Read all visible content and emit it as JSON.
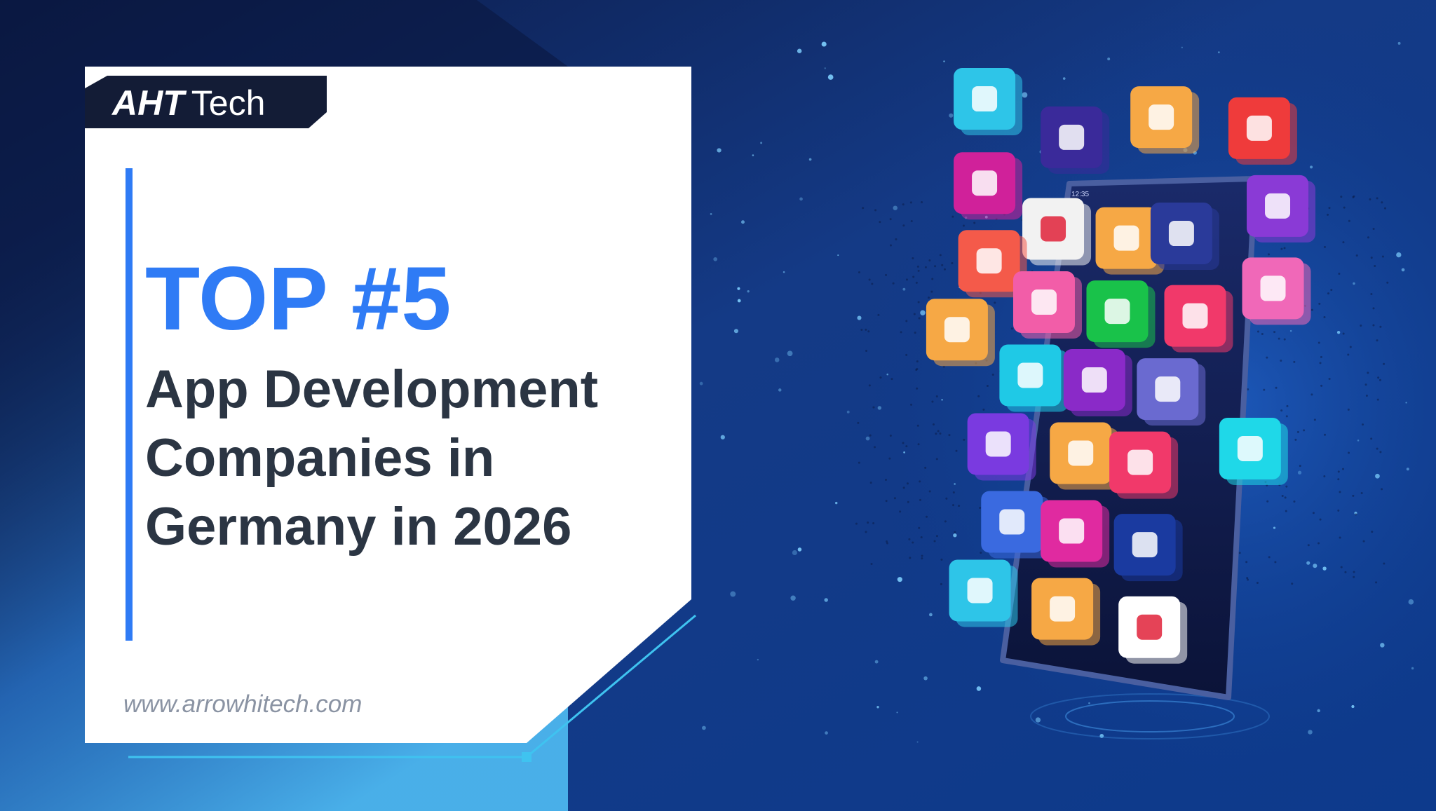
{
  "logo": {
    "mark": "AHT",
    "text": "Tech"
  },
  "headline": {
    "kicker": "TOP #5",
    "lines": [
      "App Development",
      "Companies in",
      "Germany in 2026"
    ]
  },
  "footer": {
    "url": "www.arrowhitech.com"
  },
  "phone": {
    "time": "12:35"
  }
}
